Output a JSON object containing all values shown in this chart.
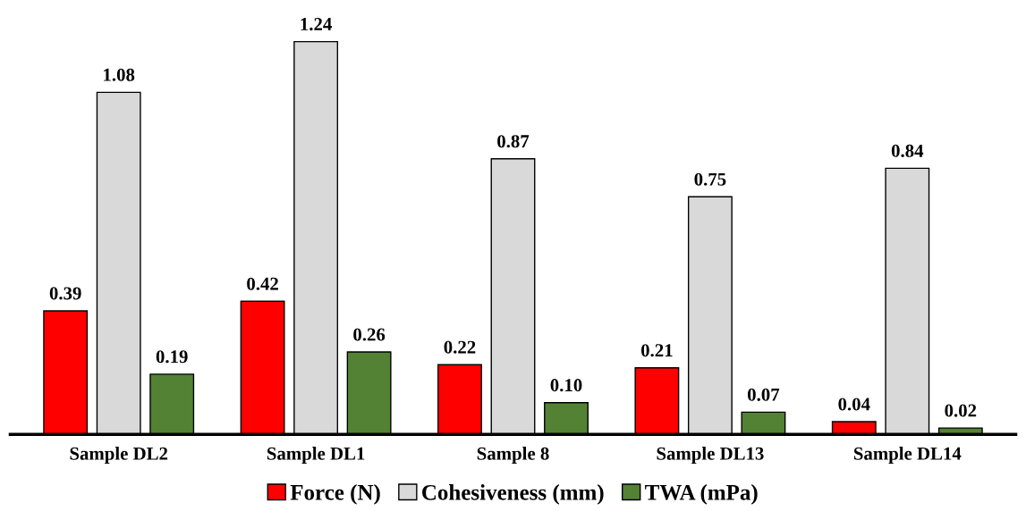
{
  "chart_data": {
    "type": "bar",
    "categories": [
      "Sample DL2",
      "Sample DL1",
      "Sample 8",
      "Sample DL13",
      "Sample DL14"
    ],
    "series": [
      {
        "name": "Force (N)",
        "color": "#ff0000",
        "values": [
          0.39,
          0.42,
          0.22,
          0.21,
          0.04
        ],
        "value_labels": [
          "0.39",
          "0.42",
          "0.22",
          "0.21",
          "0.04"
        ]
      },
      {
        "name": "Cohesiveness (mm)",
        "color": "#d9d9d9",
        "values": [
          1.08,
          1.24,
          0.87,
          0.75,
          0.84
        ],
        "value_labels": [
          "1.08",
          "1.24",
          "0.87",
          "0.75",
          "0.84"
        ]
      },
      {
        "name": "TWA (mPa)",
        "color": "#548235",
        "values": [
          0.19,
          0.26,
          0.1,
          0.07,
          0.02
        ],
        "value_labels": [
          "0.19",
          "0.26",
          "0.10",
          "0.07",
          "0.02"
        ]
      }
    ],
    "tick_labels": "x",
    "grid": false,
    "legend": "bottom"
  }
}
